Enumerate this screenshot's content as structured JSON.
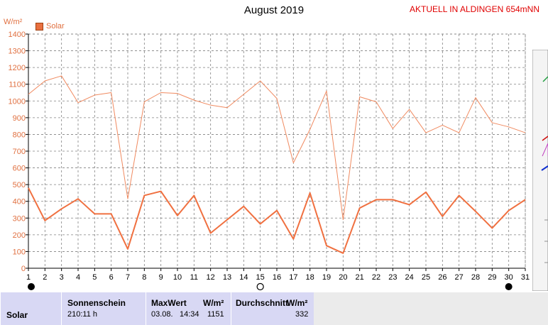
{
  "header": {
    "title": "August 2019",
    "station": "AKTUELL IN ALDINGEN 654mNN",
    "unit": "W/m²"
  },
  "chart_data": {
    "type": "line",
    "title": "August 2019",
    "ylabel": "W/m²",
    "xlabel": "",
    "ylim": [
      0,
      1400
    ],
    "xlim": [
      1,
      31
    ],
    "grid": true,
    "legend_placement": "top-left",
    "x": [
      1,
      2,
      3,
      4,
      5,
      6,
      7,
      8,
      9,
      10,
      11,
      12,
      13,
      14,
      15,
      16,
      17,
      18,
      19,
      20,
      21,
      22,
      23,
      24,
      25,
      26,
      27,
      28,
      29,
      30,
      31
    ],
    "y_ticks": [
      0,
      100,
      200,
      300,
      400,
      500,
      600,
      700,
      800,
      900,
      1000,
      1100,
      1200,
      1300,
      1400
    ],
    "x_ticks": [
      1,
      2,
      3,
      4,
      5,
      6,
      7,
      8,
      9,
      10,
      11,
      12,
      13,
      14,
      15,
      16,
      17,
      18,
      19,
      20,
      21,
      22,
      23,
      24,
      25,
      26,
      27,
      28,
      29,
      30,
      31
    ],
    "series": [
      {
        "name": "Solar",
        "role": "daily_max",
        "values": [
          1040,
          1120,
          1150,
          990,
          1035,
          1050,
          415,
          995,
          1050,
          1045,
          1005,
          975,
          960,
          1040,
          1120,
          1015,
          630,
          830,
          1060,
          290,
          1025,
          995,
          835,
          950,
          810,
          855,
          810,
          1020,
          870,
          845,
          810
        ]
      },
      {
        "name": "",
        "role": "daily_mean",
        "values": [
          480,
          285,
          355,
          415,
          325,
          325,
          115,
          435,
          460,
          315,
          435,
          210,
          290,
          370,
          265,
          345,
          175,
          450,
          135,
          90,
          360,
          410,
          410,
          380,
          455,
          310,
          435,
          340,
          240,
          345,
          410
        ]
      }
    ],
    "colors": {
      "max_line": "#f08a60",
      "mean_line": "#f07040",
      "grid": "#808080",
      "axis": "#000000"
    }
  },
  "legend": {
    "label": "Solar",
    "color": "#e87040"
  },
  "moon_phases": [
    {
      "day": 1,
      "phase": "new-moon"
    },
    {
      "day": 15,
      "phase": "full-moon"
    },
    {
      "day": 30,
      "phase": "new-moon"
    }
  ],
  "footer": {
    "row_label": "Solar",
    "sunshine_header": "Sonnenschein",
    "sunshine_value": "210:11 h",
    "max_header": "MaxWert",
    "max_unit": "W/m²",
    "max_date": "03.08.",
    "max_time": "14:34",
    "max_value": "1151",
    "avg_header": "Durchschnitt",
    "avg_unit": "W/m²",
    "avg_value": "332"
  }
}
